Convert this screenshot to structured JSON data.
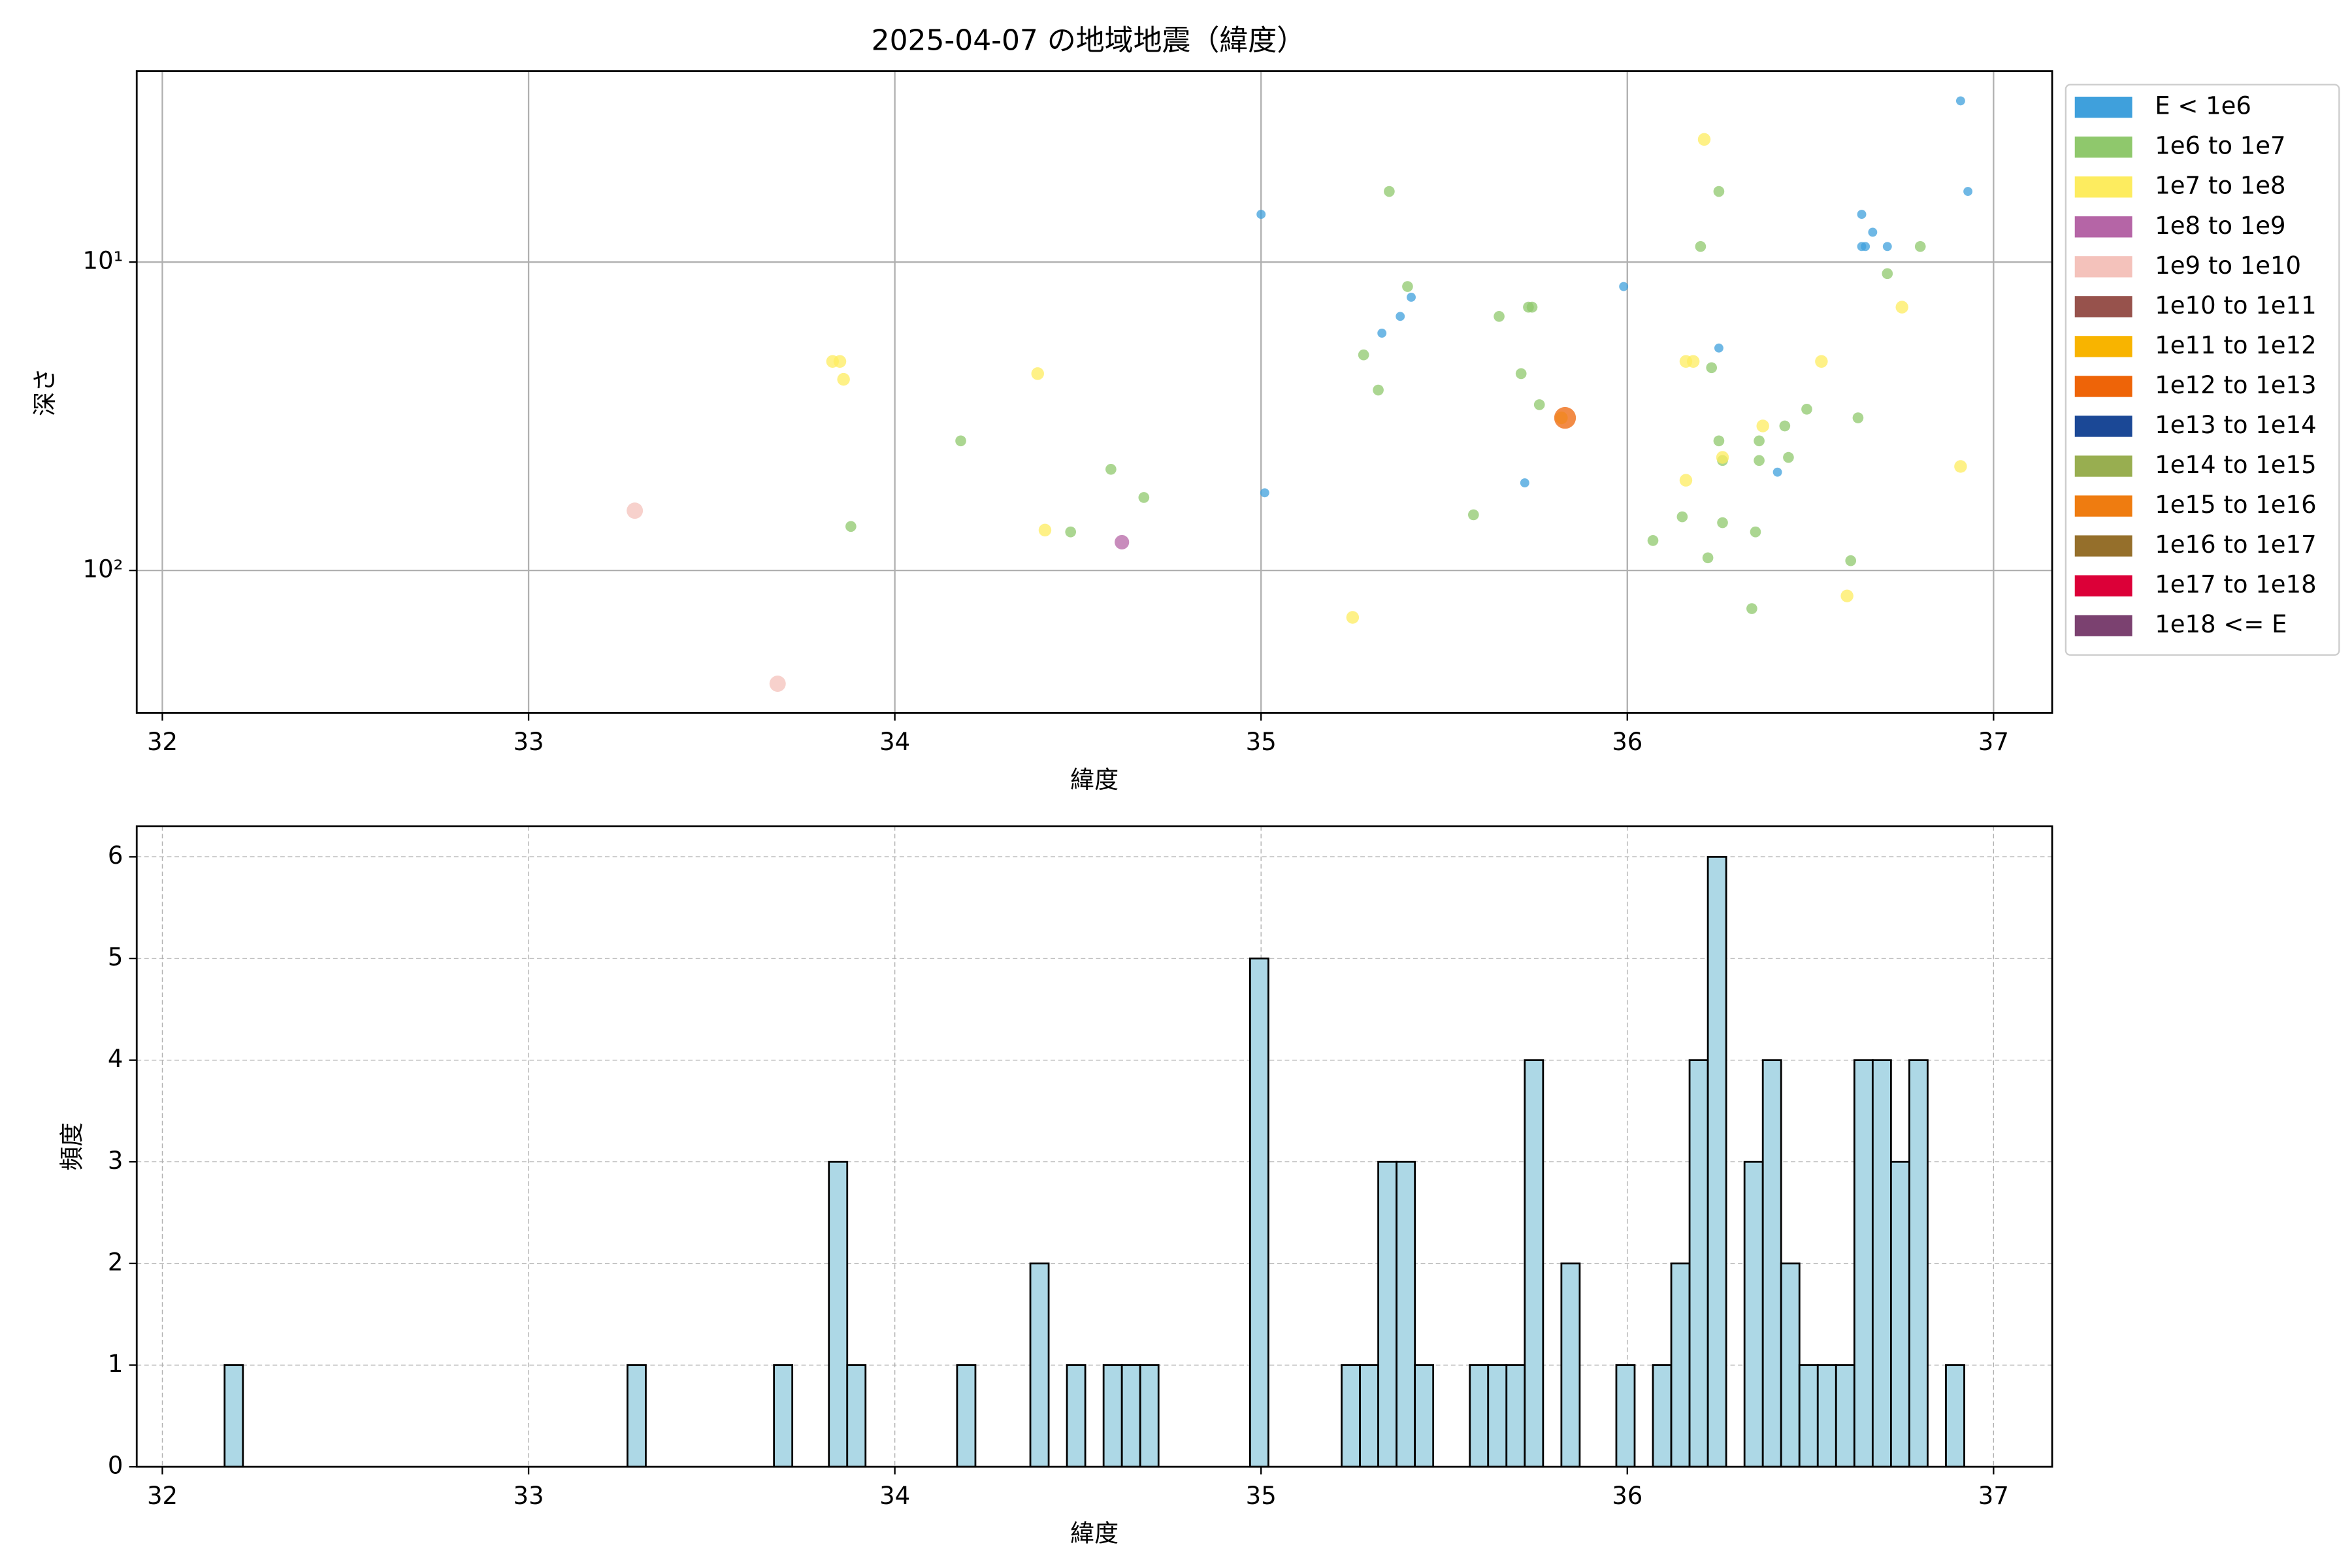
{
  "chart_data": [
    {
      "type": "scatter",
      "title": "2025-04-07 の地域地震（緯度）",
      "xlabel": "緯度",
      "ylabel": "深さ",
      "xlim": [
        31.93,
        37.16
      ],
      "xticks": [
        32,
        33,
        34,
        35,
        36,
        37
      ],
      "ylim": [
        2.4,
        290
      ],
      "yscale": "log",
      "y_inverted": true,
      "yticks": [
        {
          "value": 10,
          "label": "10¹"
        },
        {
          "value": 100,
          "label": "10²"
        }
      ],
      "grid": true,
      "legend": "outside right",
      "series": [
        {
          "name": "E < 1e6",
          "color": "#3fa0dc",
          "x": [
            36.91,
            36.93,
            36.64,
            36.67,
            36.64,
            36.71,
            36.65,
            35.0,
            35.99,
            35.41,
            35.38,
            35.33,
            36.25,
            36.41,
            35.72,
            35.01
          ],
          "values": [
            3.0,
            5.9,
            7.0,
            8.0,
            8.9,
            8.9,
            8.9,
            7.0,
            12,
            13,
            15,
            17,
            19,
            48,
            52,
            56
          ]
        },
        {
          "name": "1e6 to 1e7",
          "color": "#8fc86c",
          "x": [
            35.35,
            36.25,
            36.2,
            36.8,
            36.71,
            35.4,
            35.65,
            35.73,
            35.74,
            35.28,
            36.23,
            35.71,
            35.32,
            35.76,
            36.63,
            36.49,
            36.43,
            36.25,
            36.36,
            36.36,
            36.44,
            36.26,
            34.18,
            34.59,
            34.68,
            35.58,
            36.15,
            36.26,
            33.88,
            36.35,
            34.48,
            36.07,
            36.22,
            36.61,
            36.34
          ],
          "values": [
            5.9,
            5.9,
            8.9,
            8.9,
            10.9,
            12,
            15,
            14,
            14,
            20,
            22,
            23,
            26,
            29,
            32,
            30,
            34,
            38,
            38,
            44,
            43,
            44,
            38,
            47,
            58,
            66,
            67,
            70,
            72,
            75,
            75,
            80,
            91,
            93,
            133
          ]
        },
        {
          "name": "1e7 to 1e8",
          "color": "#fdec5f",
          "x": [
            36.21,
            33.83,
            33.85,
            33.86,
            34.39,
            36.16,
            36.18,
            36.53,
            36.75,
            36.37,
            36.26,
            36.91,
            36.16,
            34.41,
            36.6,
            35.25,
            35.82
          ],
          "values": [
            4.0,
            21,
            21,
            24,
            23,
            21,
            21,
            21,
            14,
            34,
            43,
            46,
            51,
            74,
            121,
            142,
            32
          ]
        },
        {
          "name": "1e8 to 1e9",
          "color": "#b565a6",
          "x": [
            34.62
          ],
          "values": [
            81
          ]
        },
        {
          "name": "1e9 to 1e10",
          "color": "#f4c2bb",
          "x": [
            33.29,
            33.68
          ],
          "values": [
            64,
            233
          ]
        },
        {
          "name": "1e10 to 1e11",
          "color": "#97524c",
          "x": [],
          "values": []
        },
        {
          "name": "1e11 to 1e12",
          "color": "#f8b400",
          "x": [],
          "values": []
        },
        {
          "name": "1e12 to 1e13",
          "color": "#ee6408",
          "x": [
            35.83
          ],
          "values": [
            32
          ]
        },
        {
          "name": "1e13 to 1e14",
          "color": "#1b4896",
          "x": [],
          "values": []
        },
        {
          "name": "1e14 to 1e15",
          "color": "#98ae50",
          "x": [],
          "values": []
        },
        {
          "name": "1e15 to 1e16",
          "color": "#ef7c10",
          "x": [],
          "values": []
        },
        {
          "name": "1e16 to 1e17",
          "color": "#956f2b",
          "x": [],
          "values": []
        },
        {
          "name": "1e17 to 1e18",
          "color": "#dc0038",
          "x": [],
          "values": []
        },
        {
          "name": "1e18 <= E",
          "color": "#7b4170",
          "x": [],
          "values": []
        }
      ]
    },
    {
      "type": "histogram",
      "xlabel": "緯度",
      "ylabel": "頻度",
      "color": "#add8e6",
      "edge_color": "#000000",
      "xlim": [
        31.93,
        37.16
      ],
      "xticks": [
        32,
        33,
        34,
        35,
        36,
        37
      ],
      "ylim": [
        0,
        6.3
      ],
      "yticks": [
        0,
        1,
        2,
        3,
        4,
        5,
        6
      ],
      "grid": true,
      "grid_style": "dashed",
      "bins": [
        32.17,
        32.22,
        32.27,
        32.32,
        32.37,
        32.42,
        32.47,
        32.52,
        32.57,
        32.62,
        32.67,
        32.72,
        32.77,
        32.82,
        32.87,
        32.92,
        32.97,
        33.02,
        33.07,
        33.12,
        33.17,
        33.22,
        33.27,
        33.32,
        33.37,
        33.42,
        33.47,
        33.52,
        33.57,
        33.62,
        33.67,
        33.72,
        33.77,
        33.82,
        33.87,
        33.92,
        33.97,
        34.02,
        34.07,
        34.12,
        34.17,
        34.22,
        34.27,
        34.32,
        34.37,
        34.42,
        34.47,
        34.52,
        34.57,
        34.62,
        34.67,
        34.72,
        34.77,
        34.82,
        34.87,
        34.92,
        34.97,
        35.02,
        35.07,
        35.12,
        35.17,
        35.22,
        35.27,
        35.32,
        35.37,
        35.42,
        35.47,
        35.52,
        35.57,
        35.62,
        35.67,
        35.72,
        35.77,
        35.82,
        35.87,
        35.92,
        35.97,
        36.02,
        36.07,
        36.12,
        36.17,
        36.22,
        36.27,
        36.32,
        36.37,
        36.42,
        36.47,
        36.52,
        36.57,
        36.62,
        36.67,
        36.72,
        36.77,
        36.82,
        36.87,
        36.92
      ],
      "values": [
        1,
        0,
        0,
        0,
        0,
        0,
        0,
        0,
        0,
        0,
        0,
        0,
        0,
        0,
        0,
        0,
        0,
        0,
        0,
        0,
        0,
        0,
        1,
        0,
        0,
        0,
        0,
        0,
        0,
        0,
        1,
        0,
        0,
        3,
        1,
        0,
        0,
        0,
        0,
        0,
        1,
        0,
        0,
        0,
        2,
        0,
        1,
        0,
        1,
        1,
        1,
        0,
        0,
        0,
        0,
        0,
        5,
        0,
        0,
        0,
        0,
        1,
        1,
        3,
        3,
        1,
        0,
        0,
        1,
        1,
        1,
        4,
        0,
        2,
        0,
        0,
        1,
        0,
        1,
        2,
        4,
        6,
        0,
        3,
        4,
        2,
        1,
        1,
        1,
        4,
        4,
        3,
        4,
        0,
        1
      ]
    }
  ]
}
